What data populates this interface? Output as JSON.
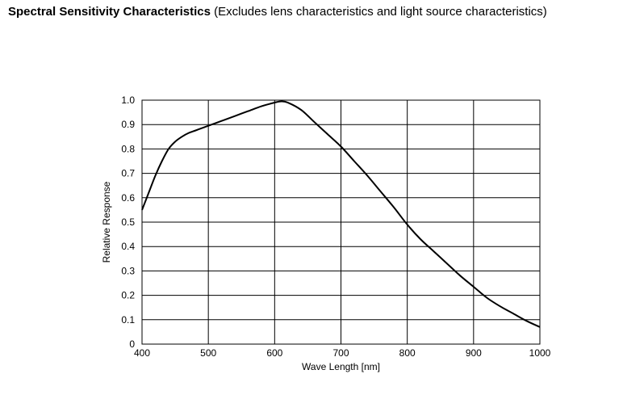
{
  "header": {
    "title_bold": "Spectral Sensitivity Characteristics",
    "title_rest": " (Excludes lens characteristics and light source characteristics)"
  },
  "chart_data": {
    "type": "line",
    "title": "Spectral Sensitivity Characteristics (Excludes lens characteristics and light source characteristics)",
    "xlabel": "Wave Length [nm]",
    "ylabel": "Relative Response",
    "xlim": [
      400,
      1000
    ],
    "ylim": [
      0,
      1.0
    ],
    "xticks": [
      400,
      500,
      600,
      700,
      800,
      900,
      1000
    ],
    "yticks": [
      0,
      0.1,
      0.2,
      0.3,
      0.4,
      0.5,
      0.6,
      0.7,
      0.8,
      0.9,
      1.0
    ],
    "ytick_labels": [
      "0",
      "0.1",
      "0.2",
      "0.3",
      "0.4",
      "0.5",
      "0.6",
      "0.7",
      "0.8",
      "0.9",
      "1.0"
    ],
    "grid": true,
    "series": [
      {
        "x": [
          400,
          410,
          420,
          430,
          440,
          450,
          460,
          470,
          480,
          490,
          500,
          520,
          540,
          560,
          580,
          600,
          610,
          620,
          640,
          660,
          680,
          700,
          720,
          740,
          760,
          780,
          800,
          820,
          840,
          860,
          880,
          900,
          920,
          940,
          960,
          980,
          1000
        ],
        "y": [
          0.55,
          0.62,
          0.69,
          0.75,
          0.8,
          0.83,
          0.85,
          0.865,
          0.875,
          0.885,
          0.895,
          0.915,
          0.935,
          0.955,
          0.975,
          0.99,
          0.995,
          0.99,
          0.96,
          0.91,
          0.86,
          0.81,
          0.75,
          0.69,
          0.625,
          0.56,
          0.49,
          0.43,
          0.38,
          0.33,
          0.28,
          0.235,
          0.19,
          0.155,
          0.125,
          0.095,
          0.07
        ]
      }
    ],
    "line_color": "#000000"
  }
}
